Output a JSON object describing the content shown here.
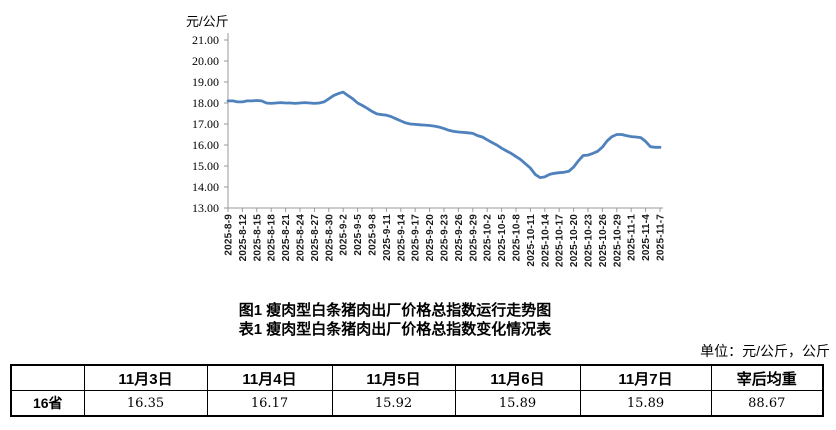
{
  "chart": {
    "unit_label": "元/公斤"
  },
  "chart_data": {
    "type": "line",
    "title": "图1 瘦肉型白条猪肉出厂价格总指数运行走势图",
    "ylabel": "元/公斤",
    "ylim": [
      13,
      21
    ],
    "y_tick_step": 1,
    "y_tick_labels": [
      "13.00",
      "14.00",
      "15.00",
      "16.00",
      "17.00",
      "18.00",
      "19.00",
      "20.00",
      "21.00"
    ],
    "x_tick_every": 3,
    "grid": false,
    "legend_position": "none",
    "line_color": "#4f81bd",
    "axis_color": "#999999",
    "x": [
      "2025-8-9",
      "2025-8-10",
      "2025-8-11",
      "2025-8-12",
      "2025-8-13",
      "2025-8-14",
      "2025-8-15",
      "2025-8-16",
      "2025-8-17",
      "2025-8-18",
      "2025-8-19",
      "2025-8-20",
      "2025-8-21",
      "2025-8-22",
      "2025-8-23",
      "2025-8-24",
      "2025-8-25",
      "2025-8-26",
      "2025-8-27",
      "2025-8-28",
      "2025-8-29",
      "2025-8-30",
      "2025-8-31",
      "2025-9-1",
      "2025-9-2",
      "2025-9-3",
      "2025-9-4",
      "2025-9-5",
      "2025-9-6",
      "2025-9-7",
      "2025-9-8",
      "2025-9-9",
      "2025-9-10",
      "2025-9-11",
      "2025-9-12",
      "2025-9-13",
      "2025-9-14",
      "2025-9-15",
      "2025-9-16",
      "2025-9-17",
      "2025-9-18",
      "2025-9-19",
      "2025-9-20",
      "2025-9-21",
      "2025-9-22",
      "2025-9-23",
      "2025-9-24",
      "2025-9-25",
      "2025-9-26",
      "2025-9-27",
      "2025-9-28",
      "2025-9-29",
      "2025-9-30",
      "2025-10-1",
      "2025-10-2",
      "2025-10-3",
      "2025-10-4",
      "2025-10-5",
      "2025-10-6",
      "2025-10-7",
      "2025-10-8",
      "2025-10-9",
      "2025-10-10",
      "2025-10-11",
      "2025-10-12",
      "2025-10-13",
      "2025-10-14",
      "2025-10-15",
      "2025-10-16",
      "2025-10-17",
      "2025-10-18",
      "2025-10-19",
      "2025-10-20",
      "2025-10-21",
      "2025-10-22",
      "2025-10-23",
      "2025-10-24",
      "2025-10-25",
      "2025-10-26",
      "2025-10-27",
      "2025-10-28",
      "2025-10-29",
      "2025-10-30",
      "2025-10-31",
      "2025-11-1",
      "2025-11-2",
      "2025-11-3",
      "2025-11-4",
      "2025-11-5",
      "2025-11-6",
      "2025-11-7"
    ],
    "values": [
      18.1,
      18.1,
      18.05,
      18.05,
      18.1,
      18.1,
      18.12,
      18.1,
      18.0,
      17.98,
      18.0,
      18.02,
      18.0,
      18.0,
      17.98,
      18.0,
      18.02,
      18.0,
      17.98,
      18.0,
      18.05,
      18.2,
      18.35,
      18.45,
      18.52,
      18.35,
      18.2,
      18.0,
      17.88,
      17.75,
      17.6,
      17.48,
      17.45,
      17.42,
      17.35,
      17.25,
      17.15,
      17.05,
      17.0,
      16.98,
      16.96,
      16.95,
      16.93,
      16.9,
      16.85,
      16.78,
      16.7,
      16.65,
      16.62,
      16.6,
      16.58,
      16.55,
      16.45,
      16.38,
      16.25,
      16.12,
      16.0,
      15.85,
      15.72,
      15.6,
      15.45,
      15.3,
      15.1,
      14.9,
      14.6,
      14.45,
      14.48,
      14.6,
      14.65,
      14.68,
      14.7,
      14.75,
      14.95,
      15.25,
      15.5,
      15.52,
      15.6,
      15.7,
      15.9,
      16.2,
      16.4,
      16.5,
      16.5,
      16.45,
      16.4,
      16.38,
      16.35,
      16.17,
      15.92,
      15.89,
      15.89
    ]
  },
  "titles": {
    "figure": "图1 瘦肉型白条猪肉出厂价格总指数运行走势图",
    "table": "表1 瘦肉型白条猪肉出厂价格总指数变化情况表"
  },
  "unit_note": "单位：元/公斤，公斤",
  "table": {
    "corner_header": "",
    "headers": [
      "11月3日",
      "11月4日",
      "11月5日",
      "11月6日",
      "11月7日",
      "宰后均重"
    ],
    "rows": [
      {
        "label": "16省",
        "values": [
          "16.35",
          "16.17",
          "15.92",
          "15.89",
          "15.89",
          "88.67"
        ]
      }
    ]
  }
}
